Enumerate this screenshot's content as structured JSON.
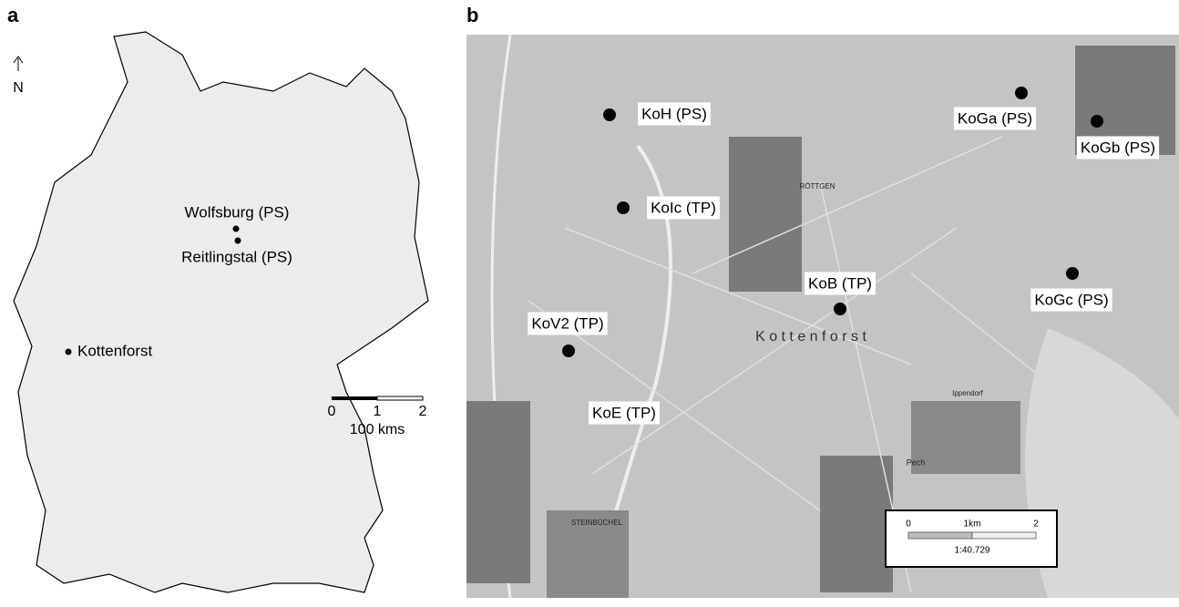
{
  "panel_a": {
    "label": "a",
    "north": "N",
    "places": [
      "Wolfsburg (PS)",
      "Reitlingstal (PS)",
      "Kottenforst"
    ],
    "scale_bar": {
      "ticks": [
        "0",
        "1",
        "2"
      ],
      "unit": "100 kms"
    }
  },
  "panel_b": {
    "label": "b",
    "sites": [
      "KoH (PS)",
      "KoGa (PS)",
      "KoGb (PS)",
      "KoIc (TP)",
      "KoB (TP)",
      "KoGc (PS)",
      "KoV2 (TP)",
      "KoE (TP)"
    ],
    "area_label": "K o t t e n f o r s t",
    "place_names": [
      "RÖTTGEN",
      "STEINBÜCHEL",
      "Pech",
      "Ippendorf"
    ],
    "scale_bar": {
      "ticks": [
        "0",
        "1km",
        "2"
      ],
      "ratio": "1:40.729"
    }
  }
}
